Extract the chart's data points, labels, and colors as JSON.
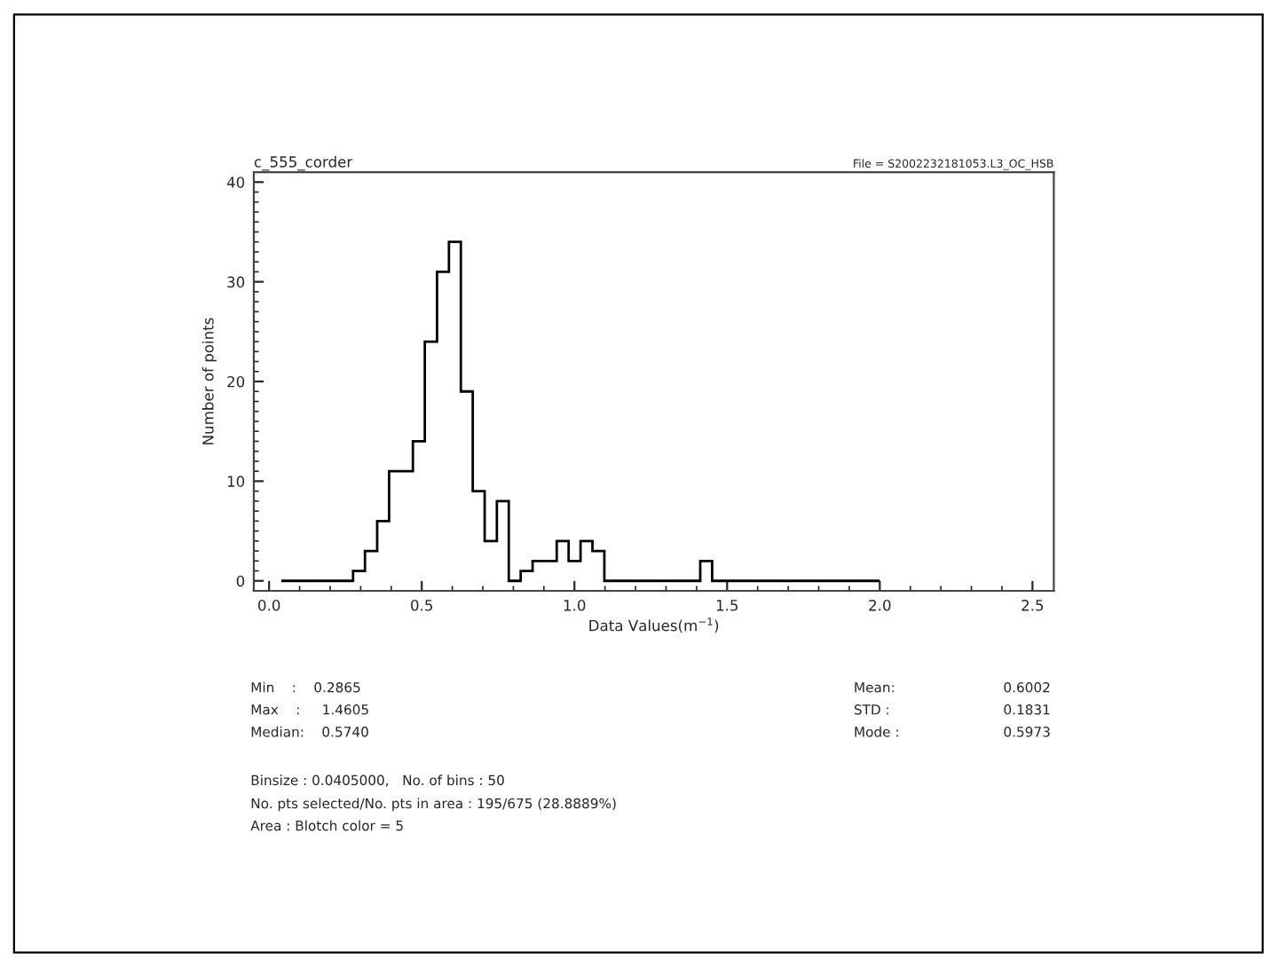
{
  "chart_data": {
    "type": "histogram",
    "title": "c_555_corder",
    "subtitle": "File = S2002232181053.L3_OC_HSB",
    "xlabel": "Data Values(m$^{−1}$)",
    "ylabel": "Number of points",
    "bins": [
      0.04,
      0.079,
      0.118,
      0.158,
      0.197,
      0.236,
      0.275,
      0.314,
      0.354,
      0.393,
      0.432,
      0.471,
      0.51,
      0.55,
      0.589,
      0.628,
      0.667,
      0.706,
      0.746,
      0.785,
      0.824,
      0.863,
      0.902,
      0.942,
      0.981,
      1.02,
      1.059,
      1.098,
      1.138,
      1.177,
      1.216,
      1.255,
      1.294,
      1.334,
      1.373,
      1.412,
      1.451,
      1.49,
      1.53,
      1.569,
      1.608,
      1.647,
      1.686,
      1.726,
      1.765,
      1.804,
      1.843,
      1.882,
      1.922,
      1.961,
      2.0
    ],
    "values": [
      0,
      0,
      0,
      0,
      0,
      0,
      1,
      3,
      6,
      11,
      11,
      14,
      24,
      31,
      34,
      19,
      9,
      4,
      8,
      0,
      1,
      2,
      2,
      4,
      2,
      4,
      3,
      0,
      0,
      0,
      0,
      0,
      0,
      0,
      0,
      2,
      0,
      0,
      0,
      0,
      0,
      0,
      0,
      0,
      0,
      0,
      0,
      0,
      0,
      0
    ],
    "color": "#000000",
    "xlim": [
      -0.05,
      2.57
    ],
    "ylim": [
      -1,
      41
    ],
    "xticks": [
      {
        "value": 0,
        "label": "0.0"
      },
      0.5,
      {
        "value": 1,
        "label": "1.0"
      },
      1.5,
      {
        "value": 2,
        "label": "2.0"
      },
      2.5
    ],
    "yticks": [
      0,
      10,
      20,
      30,
      40
    ],
    "grid": false,
    "annotations": [
      "Min    :    0.2865",
      "Max    :     1.4605",
      "Median:    0.5740",
      "Mean:",
      "STD :",
      "Mode :",
      "0.6002",
      "0.1831",
      "0.5973",
      "Binsize : 0.0405000,   No. of bins : 50",
      "No. pts selected/No. pts in area : 195/675 (28.8889%)",
      "Area : Blotch color = 5"
    ]
  }
}
